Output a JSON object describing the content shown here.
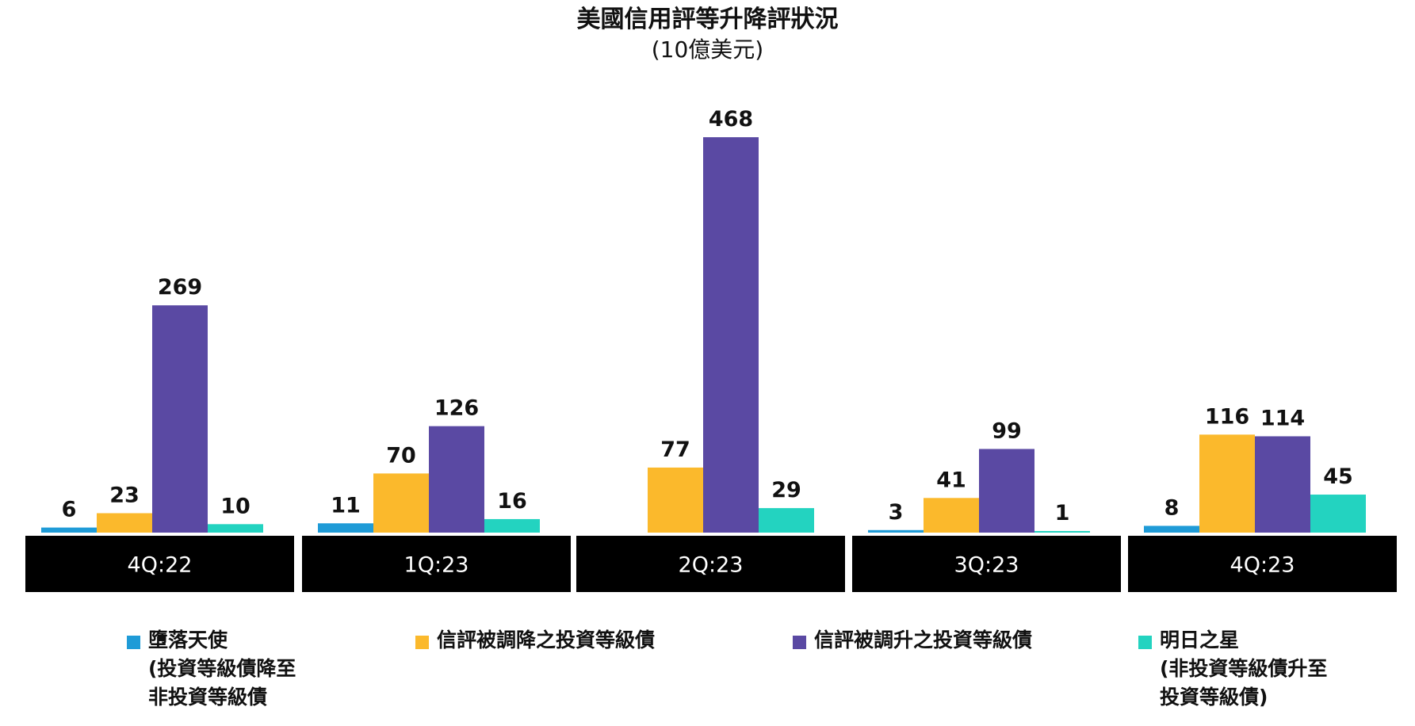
{
  "chart_data": {
    "type": "bar",
    "title": "美國信用評等升降評狀況",
    "subtitle": "(10億美元)",
    "categories": [
      "4Q:22",
      "1Q:23",
      "2Q:23",
      "3Q:23",
      "4Q:23"
    ],
    "series": [
      {
        "name": "墮落天使\n(投資等級債降至\n非投資等級債",
        "color": "#1f9bd7",
        "values": [
          6,
          11,
          null,
          3,
          8
        ]
      },
      {
        "name": "信評被調降之投資等級債",
        "color": "#fbb92c",
        "values": [
          23,
          70,
          77,
          41,
          116
        ]
      },
      {
        "name": "信評被調升之投資等級債",
        "color": "#5a49a3",
        "values": [
          269,
          126,
          468,
          99,
          114
        ]
      },
      {
        "name": "明日之星\n(非投資等級債升至\n投資等級債)",
        "color": "#23d3c0",
        "values": [
          10,
          16,
          29,
          1,
          45
        ]
      }
    ],
    "ylim": [
      0,
      500
    ],
    "grid": false,
    "legend_position": "bottom"
  }
}
